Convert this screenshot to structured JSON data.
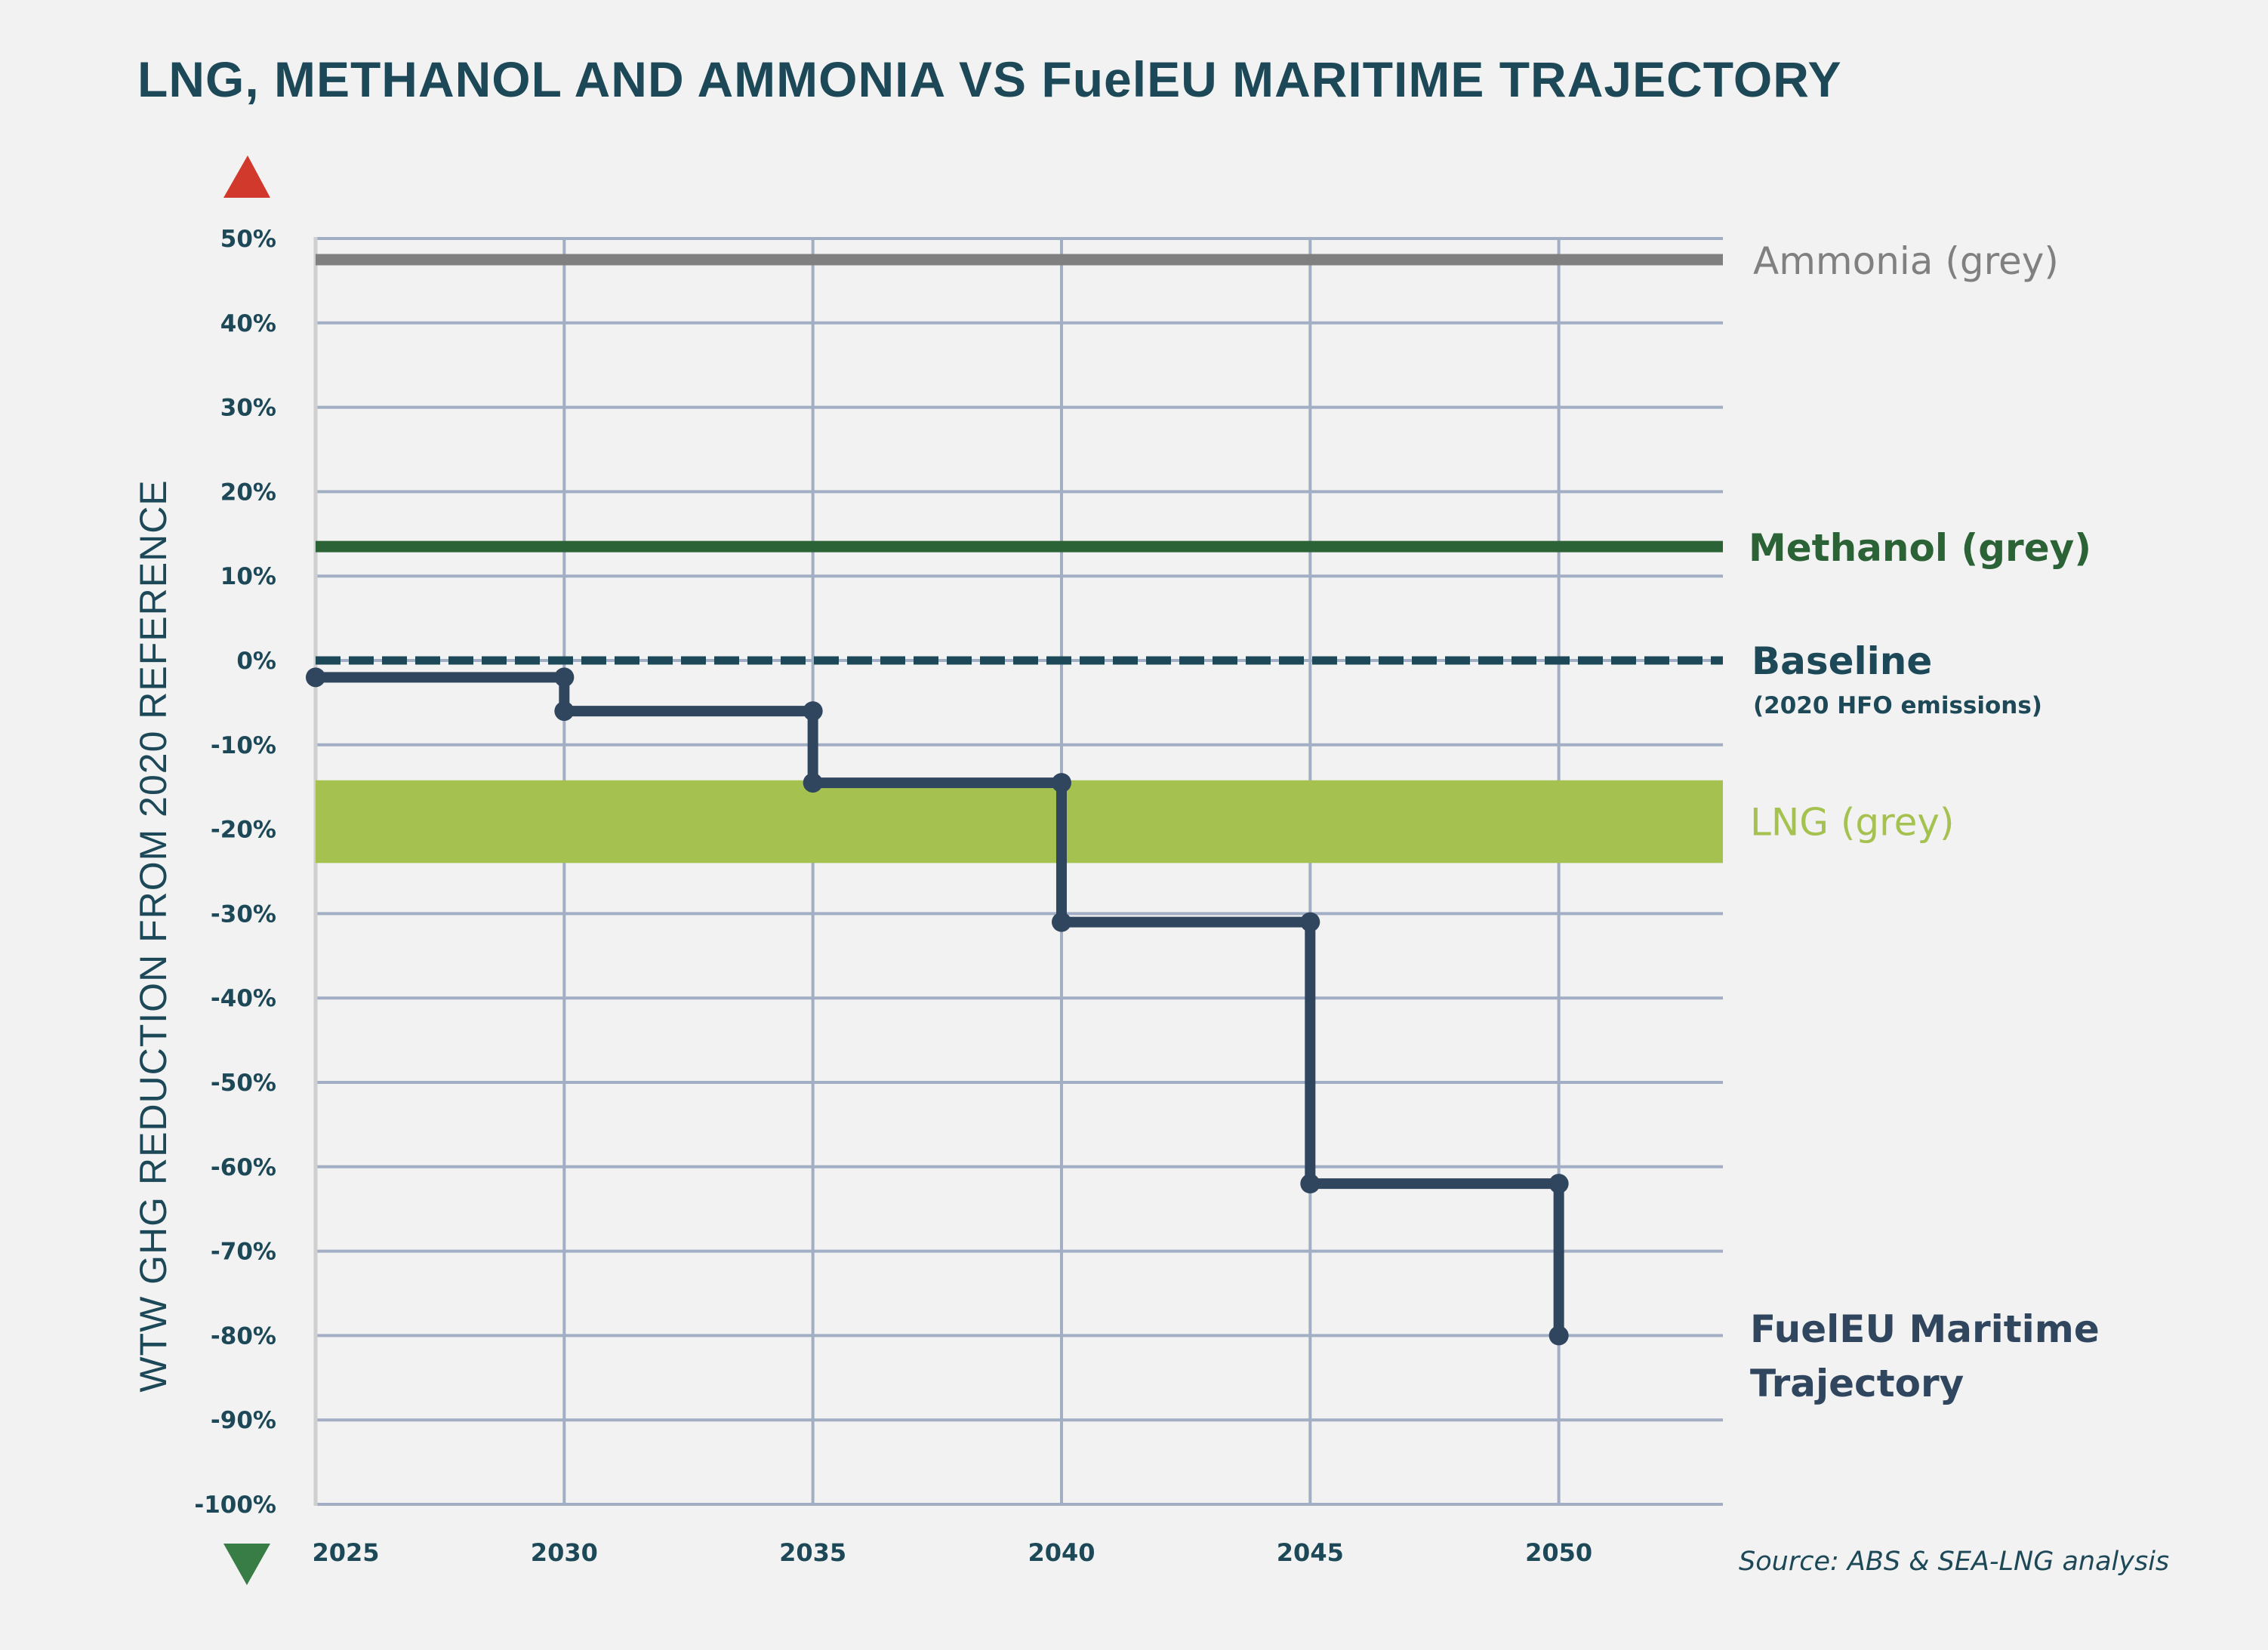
{
  "chart_data": {
    "type": "line",
    "title": "LNG, METHANOL AND AMMONIA VS FuelEU MARITIME TRAJECTORY",
    "xlabel": "",
    "ylabel": "WTW GHG REDUCTION FROM 2020 REFERENCE",
    "x_ticks": [
      "2025",
      "2030",
      "2035",
      "2040",
      "2045",
      "2050"
    ],
    "xlim": [
      2025,
      2053.3
    ],
    "y_ticks": [
      "50%",
      "40%",
      "30%",
      "20%",
      "10%",
      "0%",
      "-10%",
      "-20%",
      "-30%",
      "-40%",
      "-50%",
      "-60%",
      "-70%",
      "-80%",
      "-90%",
      "-100%"
    ],
    "y_tick_values": [
      50,
      40,
      30,
      20,
      10,
      0,
      -10,
      -20,
      -30,
      -40,
      -50,
      -60,
      -70,
      -80,
      -90,
      -100
    ],
    "ylim": [
      -100,
      50
    ],
    "grid": true,
    "series": [
      {
        "name": "Ammonia (grey)",
        "kind": "hline",
        "value": 47.5,
        "color": "#808080"
      },
      {
        "name": "Methanol (grey)",
        "kind": "hline",
        "value": 13.5,
        "color": "#2b6236"
      },
      {
        "name": "Baseline",
        "subtitle": "(2020 HFO emissions)",
        "kind": "hline-dashed",
        "value": 0,
        "color": "#1c4857"
      },
      {
        "name": "LNG (grey)",
        "kind": "band",
        "range": [
          -24,
          -14.2
        ],
        "color": "#a5c250"
      },
      {
        "name": "FuelEU Maritime Trajectory",
        "name_lines": [
          "FuelEU Maritime",
          "Trajectory"
        ],
        "kind": "step",
        "color": "#30455e",
        "points": [
          {
            "x": 2025,
            "y": -2
          },
          {
            "x": 2030,
            "y": -2
          },
          {
            "x": 2030,
            "y": -6
          },
          {
            "x": 2035,
            "y": -6
          },
          {
            "x": 2035,
            "y": -14.5
          },
          {
            "x": 2040,
            "y": -14.5
          },
          {
            "x": 2040,
            "y": -31
          },
          {
            "x": 2045,
            "y": -31
          },
          {
            "x": 2045,
            "y": -62
          },
          {
            "x": 2050,
            "y": -62
          },
          {
            "x": 2050,
            "y": -80
          }
        ]
      }
    ],
    "indicators": {
      "up_arrow_color": "#d0392b",
      "down_arrow_color": "#377d45"
    },
    "source": "Source: ABS & SEA-LNG analysis"
  },
  "colors": {
    "background": "#f2f2f2",
    "text": "#1c4857",
    "grid": "#a2aec4",
    "axis": "#cfcfcf"
  }
}
